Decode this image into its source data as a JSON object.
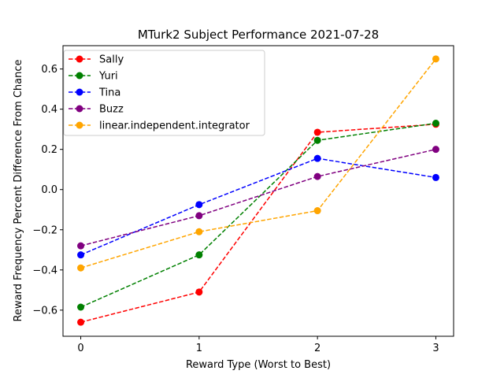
{
  "chart_data": {
    "type": "line",
    "title": "MTurk2 Subject Performance 2021-07-28",
    "xlabel": "Reward Type (Worst to Best)",
    "ylabel": "Reward Frequency Percent Difference From Chance",
    "x": [
      0,
      1,
      2,
      3
    ],
    "xticks": [
      "0",
      "1",
      "2",
      "3"
    ],
    "xlim": [
      -0.15,
      3.15
    ],
    "yticks": [
      "−0.6",
      "−0.4",
      "−0.2",
      "0.0",
      "0.2",
      "0.4",
      "0.6"
    ],
    "ytick_values": [
      -0.6,
      -0.4,
      -0.2,
      0.0,
      0.2,
      0.4,
      0.6
    ],
    "ylim": [
      -0.73,
      0.716
    ],
    "grid": false,
    "legend_position": "upper-left",
    "series": [
      {
        "name": "Sally",
        "color": "#ff0000",
        "values": [
          -0.66,
          -0.51,
          0.285,
          0.325
        ]
      },
      {
        "name": "Yuri",
        "color": "#008000",
        "values": [
          -0.585,
          -0.325,
          0.245,
          0.33
        ]
      },
      {
        "name": "Tina",
        "color": "#0000ff",
        "values": [
          -0.325,
          -0.075,
          0.155,
          0.06
        ]
      },
      {
        "name": "Buzz",
        "color": "#800080",
        "values": [
          -0.28,
          -0.13,
          0.065,
          0.2
        ]
      },
      {
        "name": "linear.independent.integrator",
        "color": "#ffa500",
        "values": [
          -0.39,
          -0.21,
          -0.105,
          0.65
        ]
      }
    ]
  }
}
